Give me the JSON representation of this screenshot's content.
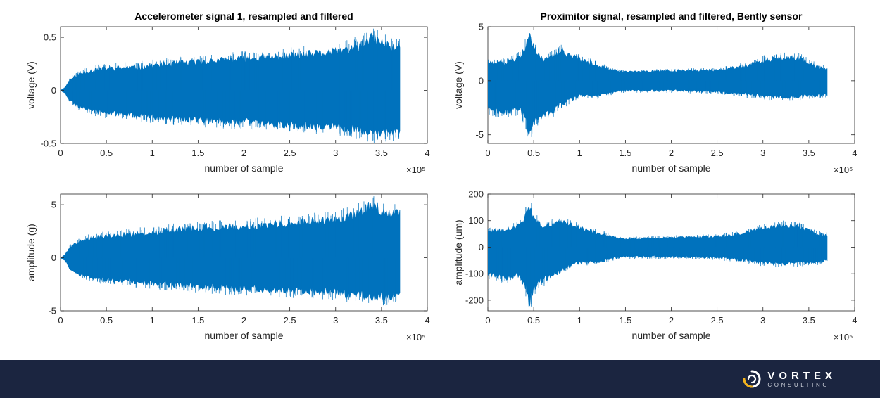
{
  "colors": {
    "series": "#0072bd",
    "footer_bg": "#1b2540",
    "logo_accent": "#f2b21a"
  },
  "footer": {
    "brand": "VORTEX",
    "subtitle": "CONSULTING",
    "logo_icon": "swirl-logo-icon"
  },
  "chart_data": [
    {
      "type": "line",
      "title": "Accelerometer signal 1, resampled and filtered",
      "xlabel": "number of sample",
      "ylabel": "voltage (V)",
      "x_multiplier_label": "×10⁵",
      "xlim": [
        0,
        4
      ],
      "ylim": [
        -0.5,
        0.6
      ],
      "xticks": [
        "0",
        "0.5",
        "1",
        "1.5",
        "2",
        "2.5",
        "3",
        "3.5",
        "4"
      ],
      "yticks": [
        {
          "v": 0.5,
          "t": "0.5"
        },
        {
          "v": 0,
          "t": "0"
        },
        {
          "v": -0.5,
          "t": "-0.5"
        }
      ],
      "series": [
        {
          "values": {
            "x": [
              0,
              0.05,
              0.1,
              0.2,
              0.3,
              0.5,
              0.8,
              1.0,
              1.5,
              2.0,
              2.5,
              3.0,
              3.3,
              3.4,
              3.5,
              3.6,
              3.7
            ],
            "y_max": [
              0,
              0.03,
              0.11,
              0.17,
              0.2,
              0.23,
              0.24,
              0.26,
              0.3,
              0.33,
              0.36,
              0.4,
              0.47,
              0.55,
              0.5,
              0.45,
              0.46
            ],
            "y_min": [
              0,
              -0.03,
              -0.11,
              -0.17,
              -0.2,
              -0.24,
              -0.26,
              -0.28,
              -0.31,
              -0.33,
              -0.36,
              -0.38,
              -0.42,
              -0.45,
              -0.44,
              -0.43,
              -0.43
            ]
          }
        }
      ]
    },
    {
      "type": "line",
      "title": "Proximitor signal, resampled and filtered, Bently sensor",
      "xlabel": "number of sample",
      "ylabel": "voltage (V)",
      "x_multiplier_label": "×10⁵",
      "xlim": [
        0,
        4
      ],
      "ylim": [
        -5.8,
        5
      ],
      "xticks": [
        "0",
        "0.5",
        "1",
        "1.5",
        "2",
        "2.5",
        "3",
        "3.5",
        "4"
      ],
      "yticks": [
        {
          "v": 5,
          "t": "5"
        },
        {
          "v": 0,
          "t": "0"
        },
        {
          "v": -5,
          "t": "-5"
        }
      ],
      "series": [
        {
          "values": {
            "x": [
              0,
              0.2,
              0.35,
              0.42,
              0.45,
              0.5,
              0.6,
              0.7,
              0.8,
              0.9,
              1.0,
              1.2,
              1.4,
              1.5,
              1.8,
              2.0,
              2.5,
              2.8,
              3.0,
              3.2,
              3.4,
              3.6,
              3.7
            ],
            "y_max": [
              1.8,
              1.9,
              2.5,
              3.8,
              5.0,
              3.4,
              2.0,
              2.5,
              3.0,
              2.6,
              2.2,
              1.6,
              1.0,
              0.9,
              1.0,
              1.0,
              1.1,
              1.5,
              2.1,
              2.4,
              2.3,
              1.4,
              1.2
            ],
            "y_min": [
              -2.8,
              -3.2,
              -3.0,
              -4.3,
              -5.7,
              -4.1,
              -3.4,
              -3.1,
              -2.4,
              -1.9,
              -1.6,
              -1.5,
              -1.1,
              -1.0,
              -1.0,
              -1.0,
              -1.1,
              -1.4,
              -1.6,
              -1.7,
              -1.6,
              -1.5,
              -1.4
            ]
          }
        }
      ]
    },
    {
      "type": "line",
      "title": "",
      "xlabel": "number of sample",
      "ylabel": "amplitude (g)",
      "x_multiplier_label": "×10⁵",
      "xlim": [
        0,
        4
      ],
      "ylim": [
        -5,
        6
      ],
      "xticks": [
        "0",
        "0.5",
        "1",
        "1.5",
        "2",
        "2.5",
        "3",
        "3.5",
        "4"
      ],
      "yticks": [
        {
          "v": 5,
          "t": "5"
        },
        {
          "v": 0,
          "t": "0"
        },
        {
          "v": -5,
          "t": "-5"
        }
      ],
      "series": [
        {
          "values": {
            "x": [
              0,
              0.05,
              0.1,
              0.2,
              0.3,
              0.5,
              0.8,
              1.0,
              1.5,
              2.0,
              2.5,
              3.0,
              3.3,
              3.4,
              3.5,
              3.6,
              3.7
            ],
            "y_max": [
              0,
              0.3,
              1.1,
              1.7,
              2.0,
              2.3,
              2.5,
              2.7,
              3.1,
              3.3,
              3.6,
              4.0,
              4.8,
              5.6,
              5.0,
              4.6,
              4.6
            ],
            "y_min": [
              0,
              -0.3,
              -1.1,
              -1.7,
              -2.0,
              -2.3,
              -2.5,
              -2.7,
              -3.0,
              -3.2,
              -3.4,
              -3.6,
              -4.0,
              -4.2,
              -4.1,
              -4.0,
              -4.0
            ]
          }
        }
      ]
    },
    {
      "type": "line",
      "title": "",
      "xlabel": "number of sample",
      "ylabel": "amplitude (um)",
      "x_multiplier_label": "×10⁵",
      "xlim": [
        0,
        4
      ],
      "ylim": [
        -240,
        200
      ],
      "xticks": [
        "0",
        "0.5",
        "1",
        "1.5",
        "2",
        "2.5",
        "3",
        "3.5",
        "4"
      ],
      "yticks": [
        {
          "v": 200,
          "t": "200"
        },
        {
          "v": 100,
          "t": "100"
        },
        {
          "v": 0,
          "t": "0"
        },
        {
          "v": -100,
          "t": "-100"
        },
        {
          "v": -200,
          "t": "-200"
        }
      ],
      "series": [
        {
          "values": {
            "x": [
              0,
              0.2,
              0.35,
              0.42,
              0.45,
              0.5,
              0.6,
              0.7,
              0.8,
              0.9,
              1.0,
              1.2,
              1.4,
              1.5,
              1.8,
              2.0,
              2.5,
              2.8,
              3.0,
              3.2,
              3.4,
              3.6,
              3.7
            ],
            "y_max": [
              65,
              70,
              95,
              140,
              175,
              125,
              80,
              95,
              110,
              95,
              80,
              60,
              40,
              35,
              38,
              40,
              44,
              60,
              80,
              90,
              85,
              55,
              50
            ],
            "y_min": [
              -110,
              -125,
              -120,
              -170,
              -235,
              -165,
              -135,
              -120,
              -95,
              -75,
              -65,
              -60,
              -45,
              -40,
              -40,
              -40,
              -44,
              -55,
              -65,
              -70,
              -65,
              -60,
              -55
            ]
          }
        }
      ]
    }
  ]
}
